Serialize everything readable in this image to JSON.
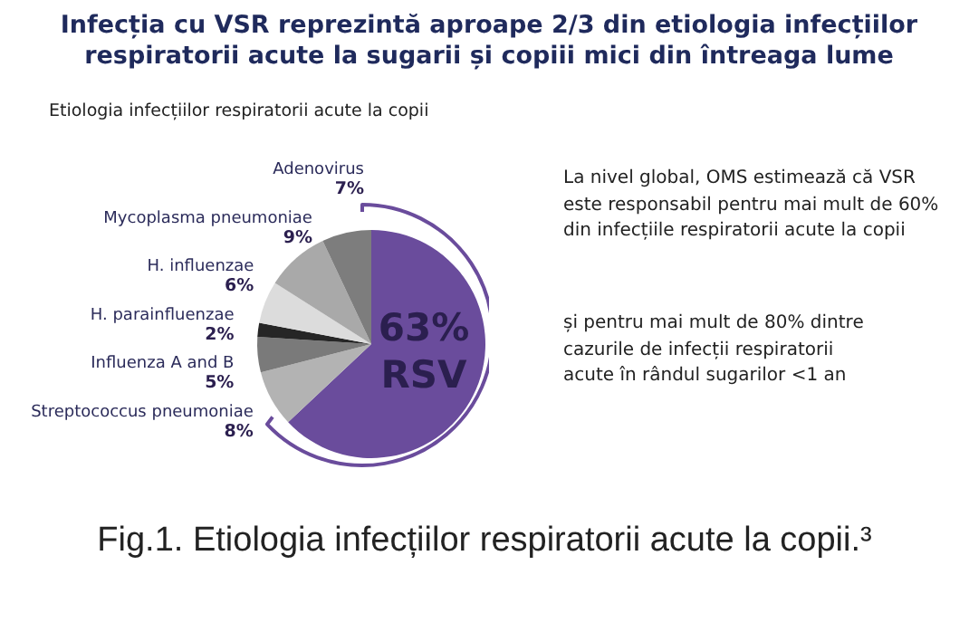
{
  "chart_data": {
    "type": "pie",
    "title": "Infecția cu VSR reprezintă aproape 2/3 din etiologia infecțiilor respiratorii acute la sugarii și copiii mici din întreaga lume",
    "subtitle": "Etiologia infecțiilor respiratorii acute la copii",
    "categories": [
      "RSV",
      "Streptococcus pneumoniae",
      "Influenza A and B",
      "H. parainfluenzae",
      "H. influenzae",
      "Mycoplasma pneumoniae",
      "Adenovirus"
    ],
    "values": [
      63,
      8,
      5,
      2,
      6,
      9,
      7
    ],
    "colors": [
      "#6a4c9c",
      "#b3b3b3",
      "#7a7a7a",
      "#262626",
      "#dcdcdc",
      "#a9a9a9",
      "#7d7d7d"
    ],
    "value_labels": [
      "63%",
      "8%",
      "5%",
      "2%",
      "6%",
      "9%",
      "7%"
    ],
    "annotations": [
      "La nivel global, OMS estimează că VSR este responsabil pentru mai mult de 60% din infecțiile respiratorii acute la copii",
      "și pentru mai mult de 80% dintre cazurile de infecții respiratorii acute în rândul sugarilor <1 an",
      "Fig.1. Etiologia infecțiilor respiratorii acute la copii.³"
    ]
  }
}
